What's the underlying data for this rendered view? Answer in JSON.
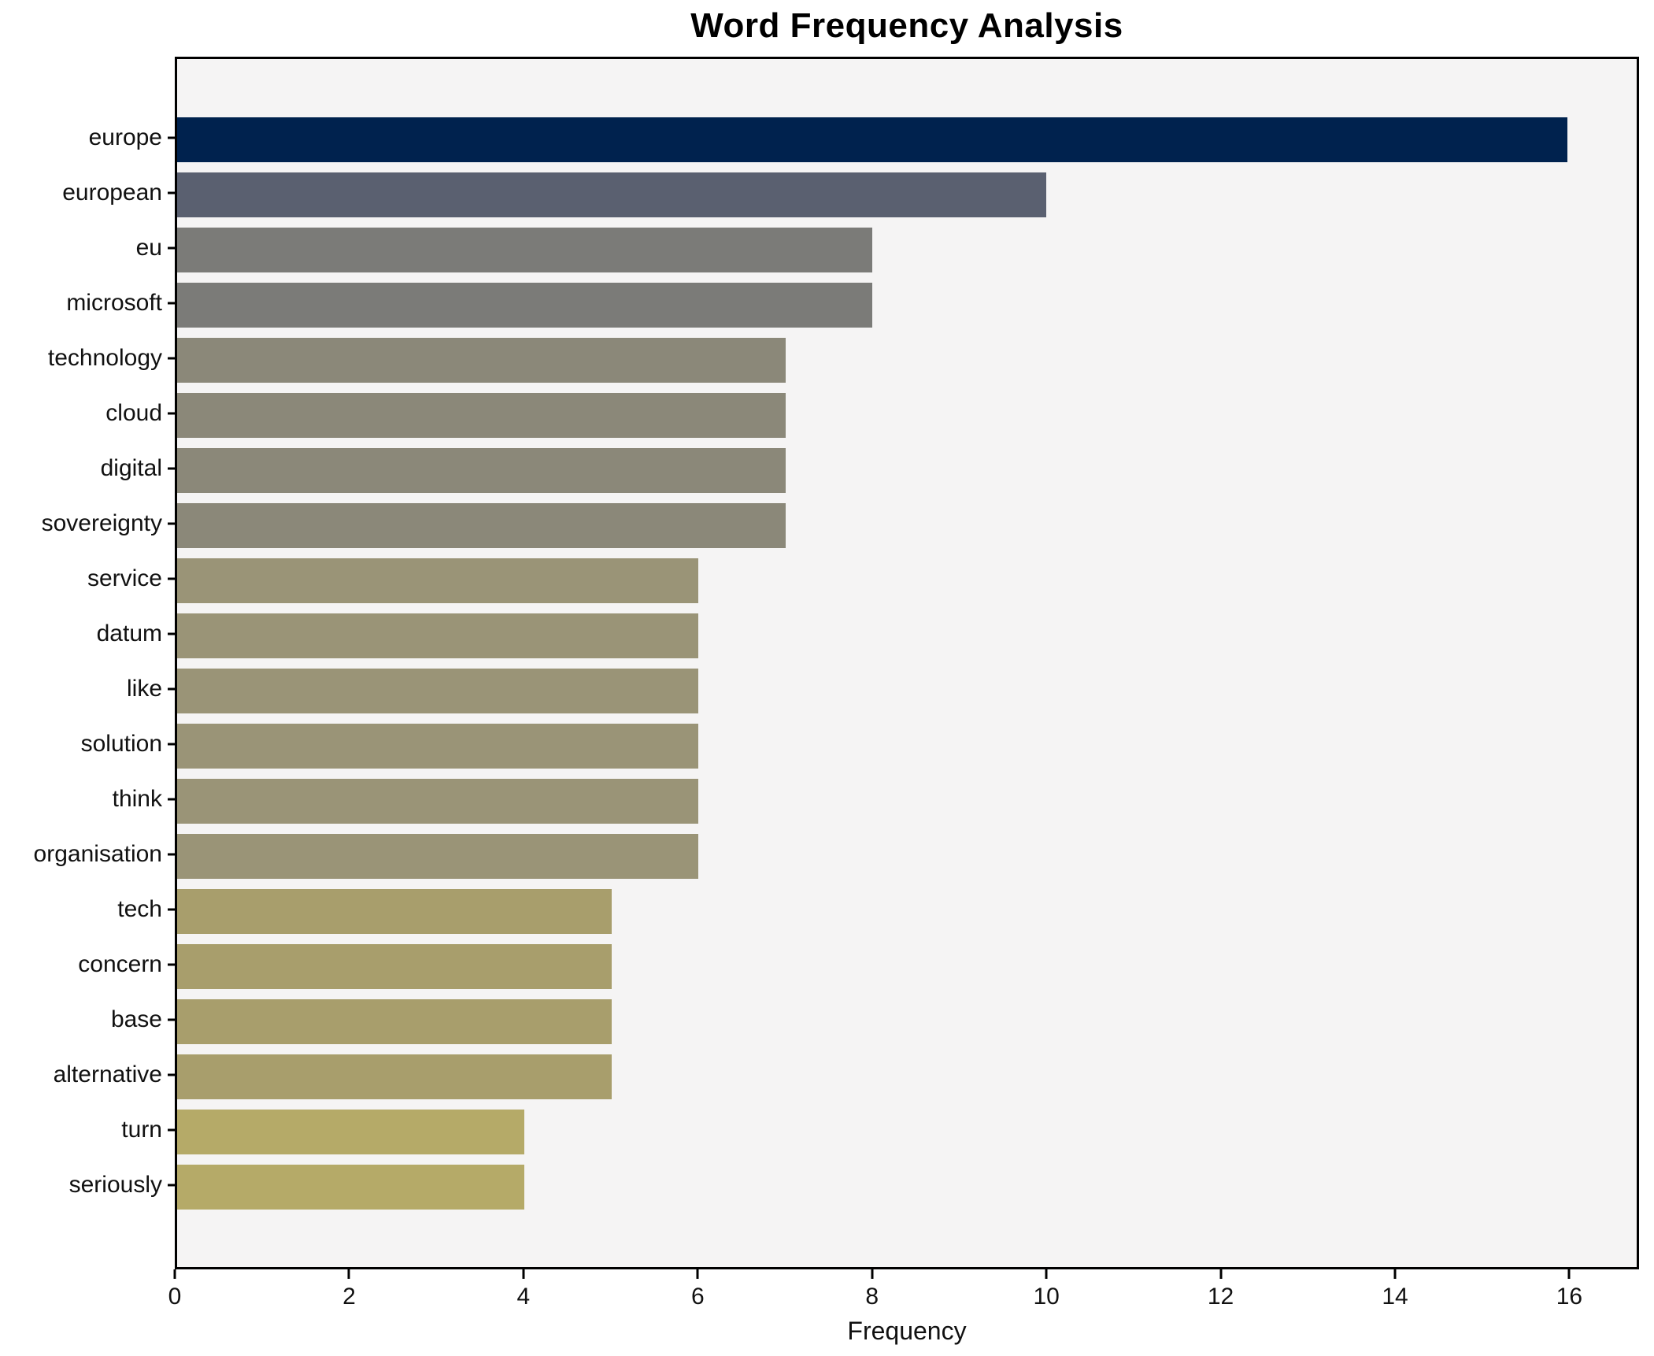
{
  "chart_data": {
    "type": "bar",
    "orientation": "horizontal",
    "title": "Word Frequency Analysis",
    "xlabel": "Frequency",
    "ylabel": "",
    "categories": [
      "europe",
      "european",
      "eu",
      "microsoft",
      "technology",
      "cloud",
      "digital",
      "sovereignty",
      "service",
      "datum",
      "like",
      "solution",
      "think",
      "organisation",
      "tech",
      "concern",
      "base",
      "alternative",
      "turn",
      "seriously"
    ],
    "values": [
      16,
      10,
      8,
      8,
      7,
      7,
      7,
      7,
      6,
      6,
      6,
      6,
      6,
      6,
      5,
      5,
      5,
      5,
      4,
      4
    ],
    "bar_colors": [
      "#00224e",
      "#5a6070",
      "#7b7b78",
      "#7b7b78",
      "#8b8879",
      "#8b8879",
      "#8b8879",
      "#8b8879",
      "#9a9477",
      "#9a9477",
      "#9a9477",
      "#9a9477",
      "#9a9477",
      "#9a9477",
      "#a89e6c",
      "#a89e6c",
      "#a89e6c",
      "#a89e6c",
      "#b5aa68",
      "#b5aa68"
    ],
    "xlim": [
      0,
      16.8
    ],
    "x_ticks": [
      0,
      2,
      4,
      6,
      8,
      10,
      12,
      14,
      16
    ],
    "grid": false,
    "legend": "none",
    "plot_background": "#f5f4f4",
    "spine_color": "#000000"
  }
}
